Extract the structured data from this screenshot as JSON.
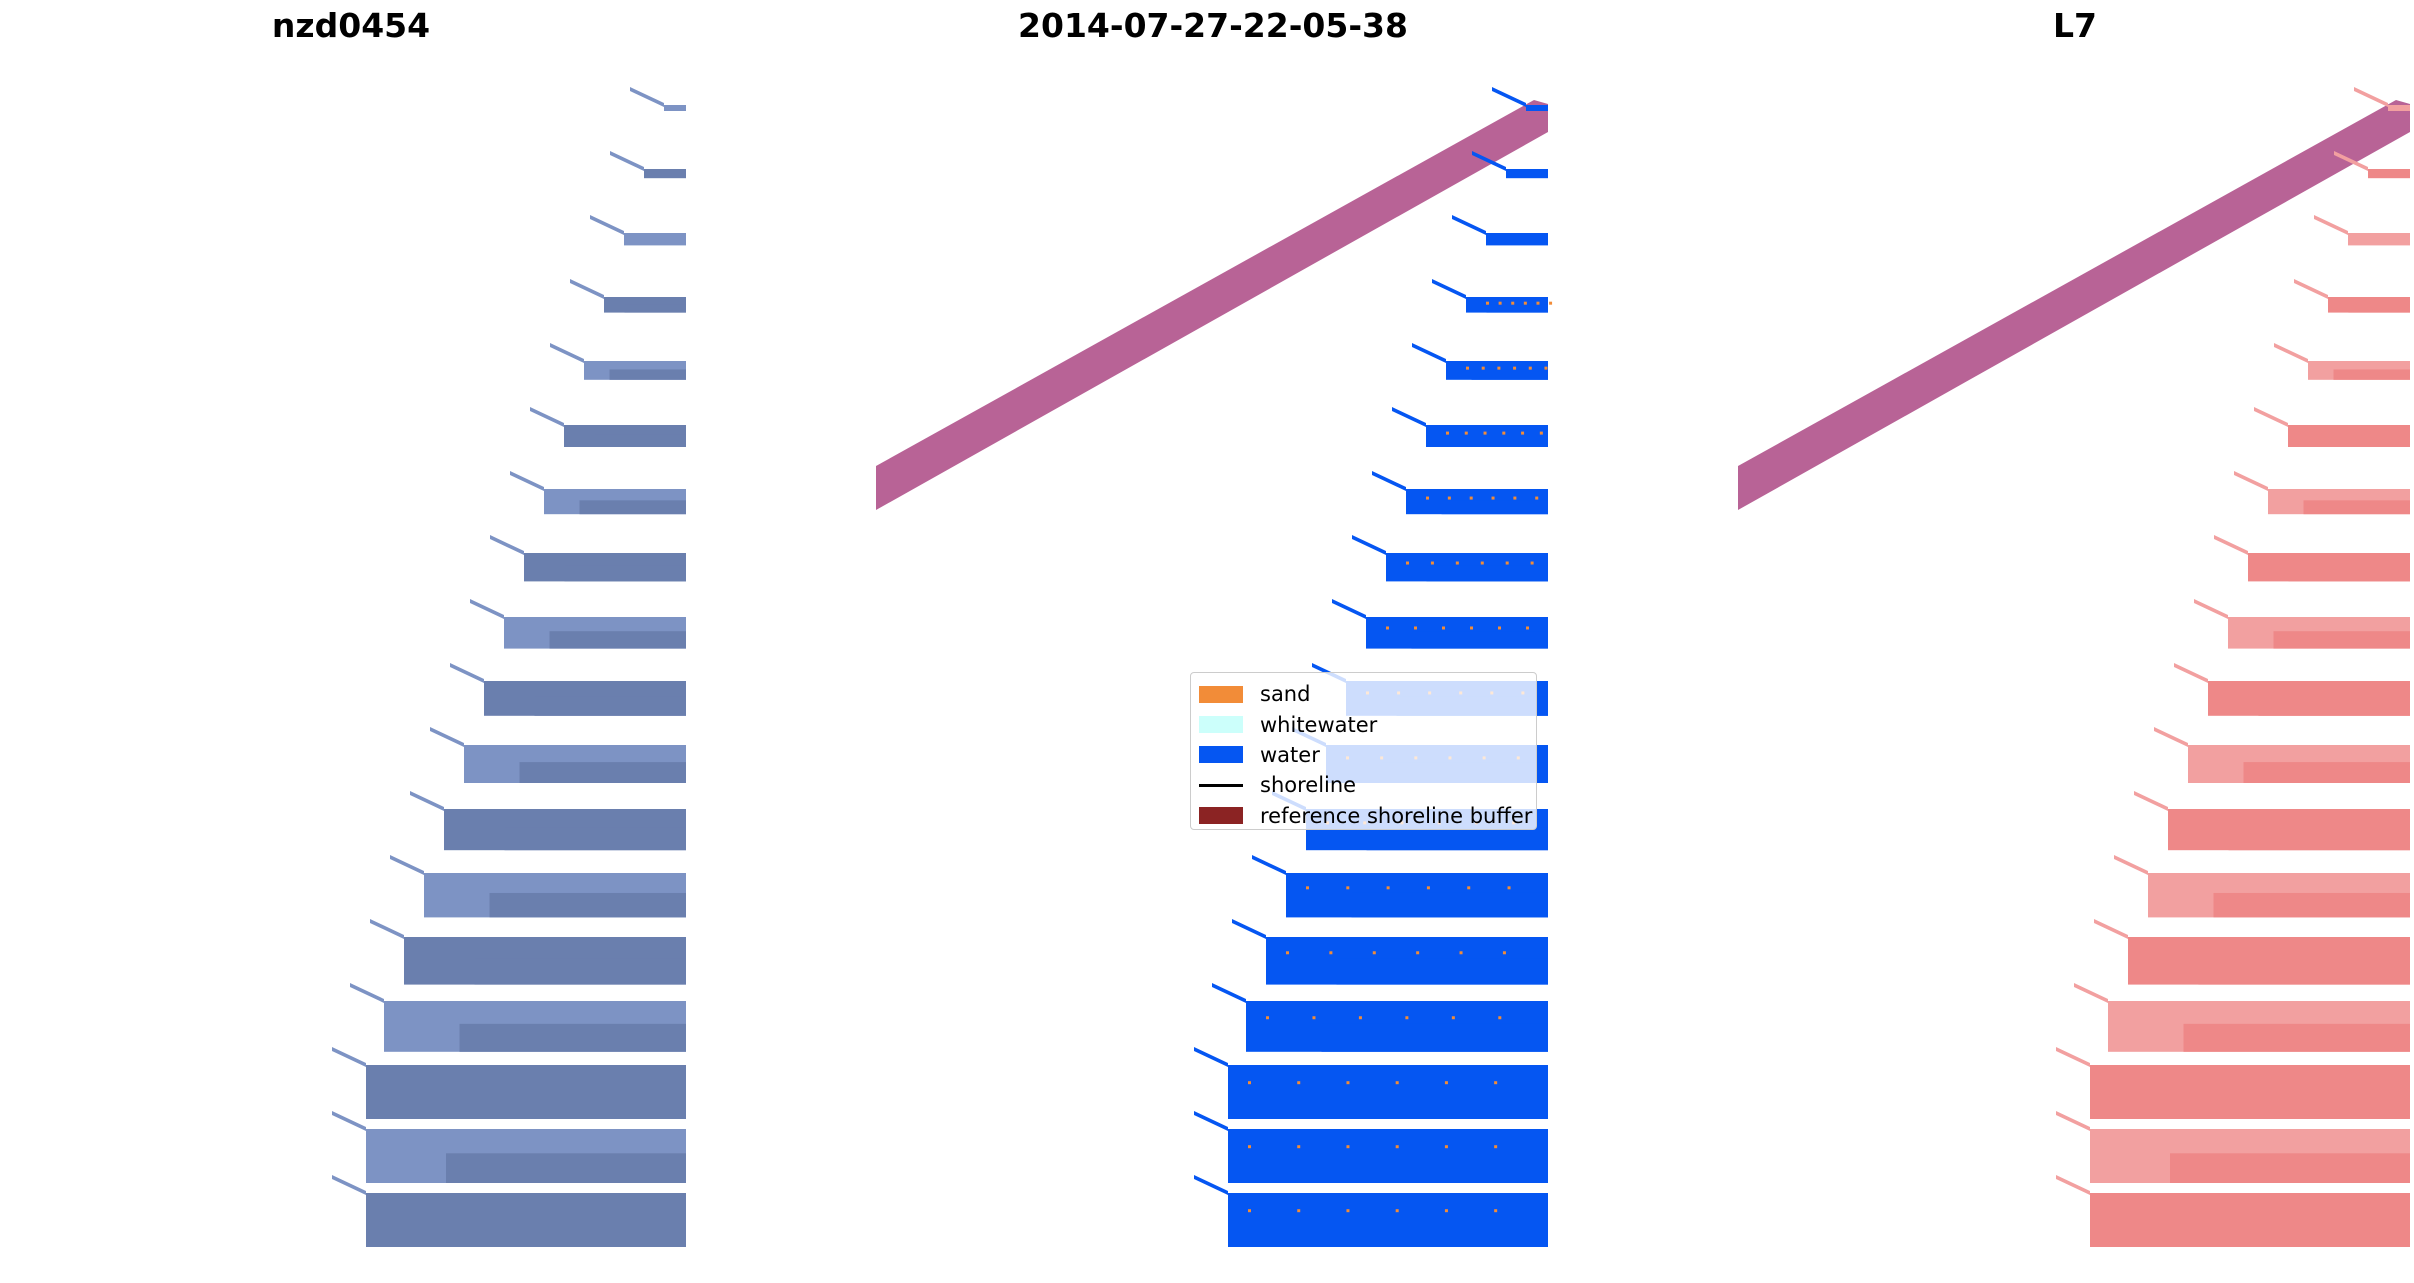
{
  "panels": [
    {
      "title": "nzd0454",
      "content": "rgb-image"
    },
    {
      "title": "2014-07-27-22-05-38",
      "content": "classified-image"
    },
    {
      "title": "L7",
      "content": "mndwi-image"
    }
  ],
  "legend": {
    "items": [
      {
        "label": "sand",
        "color": "#f28c38",
        "kind": "patch"
      },
      {
        "label": "whitewater",
        "color": "#ccfffb",
        "kind": "patch"
      },
      {
        "label": "water",
        "color": "#0556f2",
        "kind": "patch"
      },
      {
        "label": "shoreline",
        "color": "#000000",
        "kind": "line"
      },
      {
        "label": "reference shoreline buffer",
        "color": "#8b2323",
        "kind": "patch"
      }
    ]
  },
  "colors": {
    "rgb_water": "#7d93c4",
    "rgb_water_dark": "#6a7fae",
    "class_water": "#0556f2",
    "mndwi_water": "#f2a0a0",
    "buffer": "#b86396"
  }
}
